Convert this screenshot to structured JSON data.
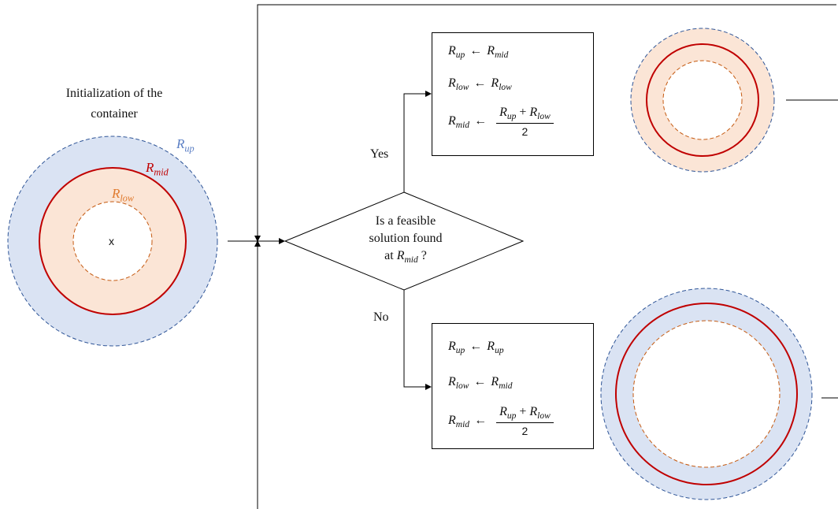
{
  "title": {
    "line1": "Initialization of the",
    "line2": "container"
  },
  "radius_labels": {
    "up": {
      "base": "R",
      "sub": "up"
    },
    "mid": {
      "base": "R",
      "sub": "mid"
    },
    "low": {
      "base": "R",
      "sub": "low"
    }
  },
  "center_mark": "x",
  "decision": {
    "line1": "Is a feasible",
    "line2": "solution found",
    "line3_prefix": "at",
    "line3_var": {
      "base": "R",
      "sub": "mid"
    },
    "line3_suffix": "?"
  },
  "branches": {
    "yes": "Yes",
    "no": "No"
  },
  "arrow_symbol": "←",
  "plus_symbol": "+",
  "fraction_denominator": "2",
  "update_yes": [
    {
      "lhs": "up",
      "rhs": "mid"
    },
    {
      "lhs": "low",
      "rhs": "low"
    },
    {
      "lhs": "mid",
      "rhs": "formula"
    }
  ],
  "update_no": [
    {
      "lhs": "up",
      "rhs": "up"
    },
    {
      "lhs": "low",
      "rhs": "mid"
    },
    {
      "lhs": "mid",
      "rhs": "formula"
    }
  ],
  "colors": {
    "outer_fill": "#dae3f3",
    "outer_stroke": "#2f5597",
    "mid_stroke": "#c00000",
    "ring_fill": "#fbe5d6",
    "inner_stroke": "#c55a11",
    "label_up": "#5b7fc4",
    "label_mid": "#c00000",
    "label_low": "#e07a2e"
  }
}
